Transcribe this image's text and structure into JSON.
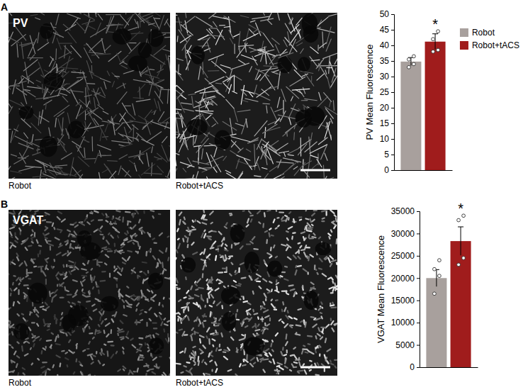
{
  "panels": [
    {
      "letter": "A",
      "stain": "PV",
      "images": [
        "Robot",
        "Robot+tACS"
      ]
    },
    {
      "letter": "B",
      "stain": "VGAT",
      "images": [
        "Robot",
        "Robot+tACS"
      ]
    }
  ],
  "chart_data": [
    {
      "type": "bar",
      "y_label": "PV Mean Fluorescence",
      "categories": [
        "Robot",
        "Robot+tACS"
      ],
      "values": [
        34.8,
        41.2
      ],
      "errors": [
        1.3,
        2.5
      ],
      "points": [
        [
          36.5,
          35.5,
          34,
          33
        ],
        [
          44.5,
          42,
          38.5,
          38
        ]
      ],
      "colors": [
        "#a8a09d",
        "#a01c1c"
      ],
      "ylim": [
        0,
        50
      ],
      "yticks": [
        0,
        5,
        10,
        15,
        20,
        25,
        30,
        35,
        40,
        45,
        50
      ],
      "annotations": [
        {
          "category": "Robot+tACS",
          "text": "*"
        }
      ],
      "legend": "top-right",
      "tick_labels": "y"
    },
    {
      "type": "bar",
      "y_label": "VGAT Mean Fluorescence",
      "categories": [
        "Robot",
        "Robot+tACS"
      ],
      "values": [
        20000,
        28300
      ],
      "errors": [
        1900,
        3200
      ],
      "points": [
        [
          24000,
          22000,
          20500,
          16500
        ],
        [
          34000,
          33000,
          24500,
          23000
        ]
      ],
      "colors": [
        "#a8a09d",
        "#a01c1c"
      ],
      "ylim": [
        0,
        35000
      ],
      "yticks": [
        0,
        5000,
        10000,
        15000,
        20000,
        25000,
        30000,
        35000
      ],
      "annotations": [
        {
          "category": "Robot+tACS",
          "text": "*"
        }
      ],
      "tick_labels": "y"
    }
  ]
}
